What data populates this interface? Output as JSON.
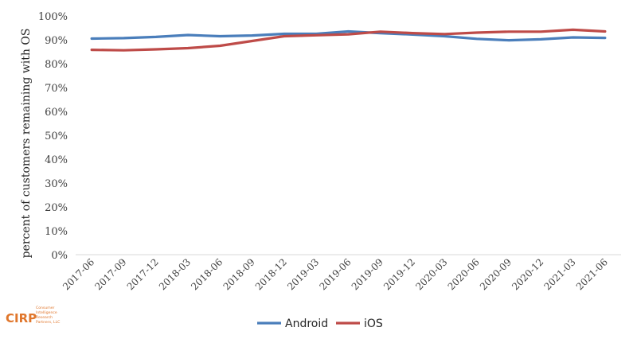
{
  "logo": {
    "mark": "CIRP",
    "lines": [
      "Consumer",
      "Intelligence",
      "Research",
      "Partners, LLC"
    ]
  },
  "chart_data": {
    "type": "line",
    "ylabel": "percent of customers remaining with OS",
    "ylim": [
      0,
      100
    ],
    "y_ticks": [
      "0%",
      "10%",
      "20%",
      "30%",
      "40%",
      "50%",
      "60%",
      "70%",
      "80%",
      "90%",
      "100%"
    ],
    "grid": false,
    "legend_position": "bottom",
    "categories": [
      "2017-06",
      "2017-09",
      "2017-12",
      "2018-03",
      "2018-06",
      "2018-09",
      "2018-12",
      "2019-03",
      "2019-06",
      "2019-09",
      "2019-12",
      "2020-03",
      "2020-06",
      "2020-09",
      "2020-12",
      "2021-03",
      "2021-06"
    ],
    "series": [
      {
        "name": "Android",
        "color": "#4a7ebb",
        "values": [
          90.5,
          90.7,
          91.2,
          92.0,
          91.5,
          91.8,
          92.5,
          92.5,
          93.5,
          92.8,
          92.2,
          91.5,
          90.4,
          89.8,
          90.2,
          91.0,
          90.8
        ]
      },
      {
        "name": "iOS",
        "color": "#be4b48",
        "values": [
          85.8,
          85.6,
          86.0,
          86.5,
          87.5,
          89.5,
          91.5,
          91.9,
          92.3,
          93.4,
          92.8,
          92.4,
          93.0,
          93.4,
          93.4,
          94.2,
          93.5
        ]
      }
    ]
  }
}
